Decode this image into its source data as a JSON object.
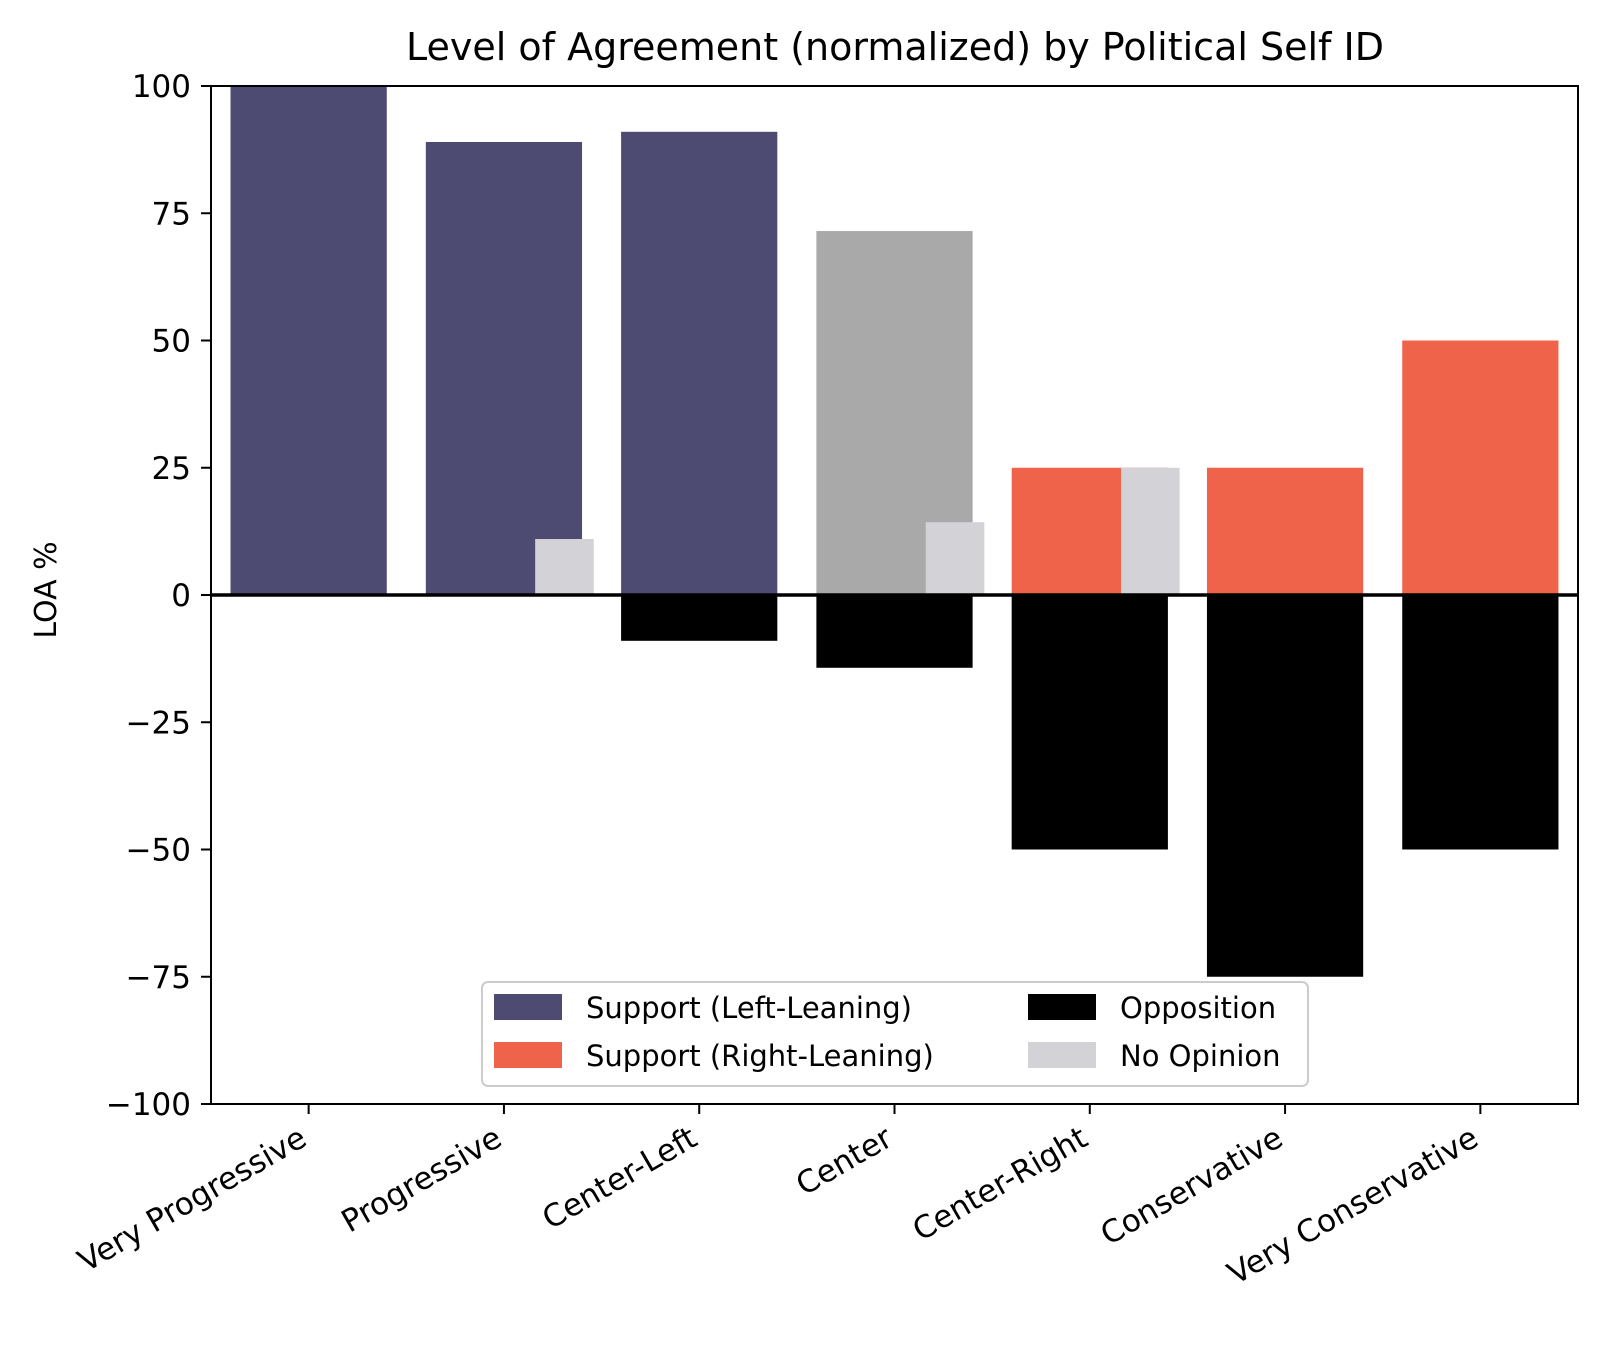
{
  "chart_data": {
    "type": "bar",
    "title": "Level of Agreement (normalized) by Political Self ID",
    "xlabel": "",
    "ylabel": "LOA %",
    "ylim": [
      -100,
      100
    ],
    "yticks": [
      100,
      75,
      50,
      25,
      0,
      -25,
      -50,
      -75,
      -100
    ],
    "ytick_labels": [
      "100",
      "75",
      "50",
      "25",
      "0",
      "−25",
      "−50",
      "−75",
      "−100"
    ],
    "categories": [
      "Very Progressive",
      "Progressive",
      "Center-Left",
      "Center",
      "Center-Right",
      "Conservative",
      "Very Conservative"
    ],
    "support_colors": [
      "#4d4b72",
      "#4d4b72",
      "#4d4b72",
      "#a9a9a9",
      "#ef634b",
      "#ef634b",
      "#ef634b"
    ],
    "series": [
      {
        "name": "Support",
        "values": [
          100,
          89,
          91,
          71.5,
          25,
          25,
          50
        ]
      },
      {
        "name": "Opposition",
        "values": [
          0,
          0,
          -9,
          -14.3,
          -50,
          -75,
          -50
        ],
        "color": "#000000"
      },
      {
        "name": "No Opinion",
        "values": [
          0,
          11,
          0,
          14.3,
          25,
          0,
          0
        ],
        "color": "#d3d2d7"
      }
    ],
    "legend": {
      "placement": "lower-center",
      "entries": [
        {
          "label": "Support (Left-Leaning)",
          "color": "#4d4b72"
        },
        {
          "label": "Opposition",
          "color": "#000000"
        },
        {
          "label": "Support (Right-Leaning)",
          "color": "#ef634b"
        },
        {
          "label": "No Opinion",
          "color": "#d3d2d7"
        }
      ]
    }
  }
}
